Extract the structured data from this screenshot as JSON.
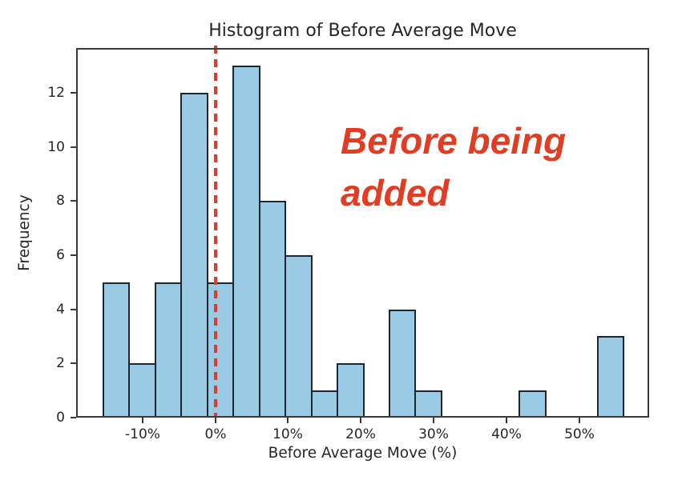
{
  "chart_data": {
    "type": "bar",
    "histogram": true,
    "title": "Histogram of Before Average Move",
    "xlabel": "Before Average Move (%)",
    "ylabel": "Frequency",
    "bin_start": -15.5,
    "bin_width": 3.575,
    "counts": [
      5,
      2,
      5,
      12,
      5,
      13,
      8,
      6,
      1,
      2,
      0,
      4,
      1,
      0,
      0,
      0,
      1,
      0,
      0,
      3
    ],
    "xlim": [
      -19.1,
      59.6
    ],
    "ylim": [
      0,
      13.65
    ],
    "x_ticks": [
      {
        "v": -10,
        "label": "-10%"
      },
      {
        "v": 0,
        "label": "0%"
      },
      {
        "v": 10,
        "label": "10%"
      },
      {
        "v": 20,
        "label": "20%"
      },
      {
        "v": 30,
        "label": "30%"
      },
      {
        "v": 40,
        "label": "40%"
      },
      {
        "v": 50,
        "label": "50%"
      }
    ],
    "y_ticks": [
      {
        "v": 0,
        "label": "0"
      },
      {
        "v": 2,
        "label": "2"
      },
      {
        "v": 4,
        "label": "4"
      },
      {
        "v": 6,
        "label": "6"
      },
      {
        "v": 8,
        "label": "8"
      },
      {
        "v": 10,
        "label": "10"
      },
      {
        "v": 12,
        "label": "12"
      }
    ],
    "grid": false,
    "legend": null,
    "vline": {
      "x": 0,
      "style": "dashed",
      "color": "#de3a2e"
    },
    "annotation": {
      "line1": "Before being",
      "line2": "added",
      "color": "#e23c23"
    },
    "colors": {
      "bar_fill": "#9acbe5",
      "bar_edge": "#1d2733",
      "spine": "#3a3a3a",
      "text": "#262626"
    }
  }
}
